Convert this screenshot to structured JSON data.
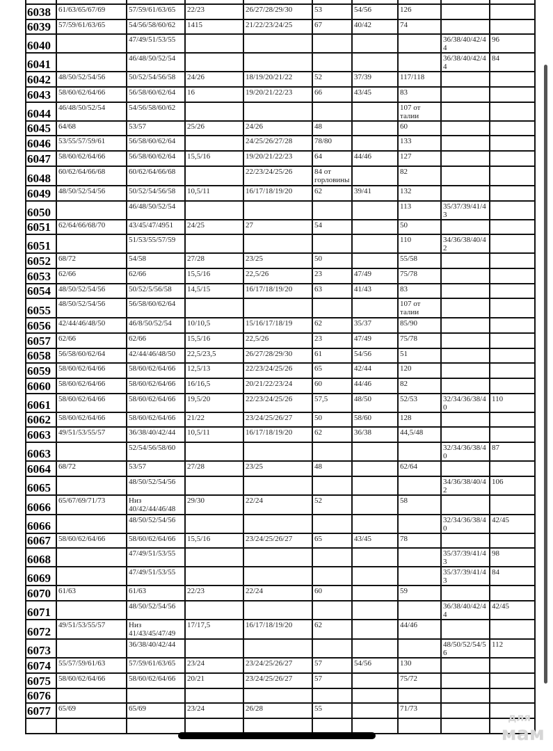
{
  "table": {
    "rows": [
      [
        "6038",
        "61/63/65/67/69",
        "57/59/61/63/65",
        "22/23",
        "26/27/28/29/30",
        "53",
        "54/56",
        "126",
        "",
        ""
      ],
      [
        "6039",
        "57/59/61/63/65",
        "54/56/58/60/62",
        "1415",
        "21/22/23/24/25",
        "67",
        "40/42",
        "74",
        "",
        ""
      ],
      [
        "6040",
        "",
        "47/49/51/53/55",
        "",
        "",
        "",
        "",
        "",
        "36/38/40/42/44",
        "96"
      ],
      [
        "6041",
        "",
        "46/48/50/52/54",
        "",
        "",
        "",
        "",
        "",
        "36/38/40/42/44",
        "84"
      ],
      [
        "6042",
        "48/50/52/54/56",
        "50/52/54/56/58",
        "24/26",
        "18/19/20/21/22",
        "52",
        "37/39",
        "117/118",
        "",
        ""
      ],
      [
        "6043",
        "58/60/62/64/66",
        "56/58/60/62/64",
        "16",
        "19/20/21/22/23",
        "66",
        "43/45",
        "83",
        "",
        ""
      ],
      [
        "6044",
        "46/48/50/52/54",
        "54/56/58/60/62",
        "",
        "",
        "",
        "",
        "107 от талии",
        "",
        ""
      ],
      [
        "6045",
        "64/68",
        "53/57",
        "25/26",
        "24/26",
        "48",
        "",
        "60",
        "",
        ""
      ],
      [
        "6046",
        "53/55/57/59/61",
        "56/58/60/62/64",
        "",
        "24/25/26/27/28",
        "78/80",
        "",
        "133",
        "",
        ""
      ],
      [
        "6047",
        "58/60/62/64/66",
        "56/58/60/62/64",
        "15,5/16",
        "19/20/21/22/23",
        "64",
        "44/46",
        "127",
        "",
        ""
      ],
      [
        "6048",
        "60/62/64/66/68",
        "60/62/64/66/68",
        "",
        "22/23/24/25/26",
        "84 от горловины",
        "",
        "82",
        "",
        ""
      ],
      [
        "6049",
        "48/50/52/54/56",
        "50/52/54/56/58",
        "10,5/11",
        "16/17/18/19/20",
        "62",
        "39/41",
        "132",
        "",
        ""
      ],
      [
        "6050",
        "",
        "46/48/50/52/54",
        "",
        "",
        "",
        "",
        "113",
        "35/37/39/41/43",
        ""
      ],
      [
        "6051",
        "62/64/66/68/70",
        "43/45/47/4951",
        "24/25",
        "27",
        "54",
        "",
        "50",
        "",
        ""
      ],
      [
        "6051",
        "",
        "51/53/55/57/59",
        "",
        "",
        "",
        "",
        "110",
        "34/36/38/40/42",
        ""
      ],
      [
        "6052",
        "68/72",
        "54/58",
        "27/28",
        "23/25",
        "50",
        "",
        "55/58",
        "",
        ""
      ],
      [
        "6053",
        "62/66",
        "62/66",
        "15,5/16",
        "22,5/26",
        "23",
        "47/49",
        "75/78",
        "",
        ""
      ],
      [
        "6054",
        "48/50/52/54/56",
        "50/52/5/56/58",
        "14,5/15",
        "16/17/18/19/20",
        "63",
        "41/43",
        "83",
        "",
        ""
      ],
      [
        "6055",
        "48/50/52/54/56",
        "56/58/60/62/64",
        "",
        "",
        "",
        "",
        "107 от талии",
        "",
        ""
      ],
      [
        "6056",
        "42/44/46/48/50",
        "46/8/50/52/54",
        "10/10,5",
        "15/16/17/18/19",
        "62",
        "35/37",
        "85/90",
        "",
        ""
      ],
      [
        "6057",
        "62/66",
        "62/66",
        "15,5/16",
        "22,5/26",
        "23",
        "47/49",
        "75/78",
        "",
        ""
      ],
      [
        "6058",
        "56/58/60/62/64",
        "42/44/46/48/50",
        "22,5/23,5",
        "26/27/28/29/30",
        "61",
        "54/56",
        "51",
        "",
        ""
      ],
      [
        "6059",
        "58/60/62/64/66",
        "58/60/62/64/66",
        "12,5/13",
        "22/23/24/25/26",
        "65",
        "42/44",
        "120",
        "",
        ""
      ],
      [
        "6060",
        "58/60/62/64/66",
        "58/60/62/64/66",
        "16/16,5",
        "20/21/22/23/24",
        "60",
        "44/46",
        "82",
        "",
        ""
      ],
      [
        "6061",
        "58/60/62/64/66",
        "58/60/62/64/66",
        "19,5/20",
        "22/23/24/25/26",
        "57,5",
        "48/50",
        "52/53",
        "32/34/36/38/40",
        "110"
      ],
      [
        "6062",
        "58/60/62/64/66",
        "58/60/62/64/66",
        "21/22",
        "23/24/25/26/27",
        "50",
        "58/60",
        "128",
        "",
        ""
      ],
      [
        "6063",
        "49/51/53/55/57",
        "36/38/40/42/44",
        "10,5/11",
        "16/17/18/19/20",
        "62",
        "36/38",
        "44,5/48",
        "",
        ""
      ],
      [
        "6063",
        "",
        "52/54/56/58/60",
        "",
        "",
        "",
        "",
        "",
        "32/34/36/38/40",
        "87"
      ],
      [
        "6064",
        "68/72",
        "53/57",
        "27/28",
        "23/25",
        "48",
        "",
        "62/64",
        "",
        ""
      ],
      [
        "6065",
        "",
        "48/50/52/54/56",
        "",
        "",
        "",
        "",
        "",
        "34/36/38/40/42",
        "106"
      ],
      [
        "6066",
        "65/67/69/71/73",
        "Низ 40/42/44/46/48",
        "29/30",
        "22/24",
        "52",
        "",
        "58",
        "",
        ""
      ],
      [
        "6066",
        "",
        "48/50/52/54/56",
        "",
        "",
        "",
        "",
        "",
        "32/34/36/38/40",
        "42/45"
      ],
      [
        "6067",
        "58/60/62/64/66",
        "58/60/62/64/66",
        "15,5/16",
        "23/24/25/26/27",
        "65",
        "43/45",
        "78",
        "",
        ""
      ],
      [
        "6068",
        "",
        "47/49/51/53/55",
        "",
        "",
        "",
        "",
        "",
        "35/37/39/41/43",
        "98"
      ],
      [
        "6069",
        "",
        "47/49/51/53/55",
        "",
        "",
        "",
        "",
        "",
        "35/37/39/41/43",
        "84"
      ],
      [
        "6070",
        "61/63",
        "61/63",
        "22/23",
        "22/24",
        "60",
        "",
        "59",
        "",
        ""
      ],
      [
        "6071",
        "",
        "48/50/52/54/56",
        "",
        "",
        "",
        "",
        "",
        "36/38/40/42/44",
        "42/45"
      ],
      [
        "6072",
        "49/51/53/55/57",
        "Низ 41/43/45/47/49",
        "17/17,5",
        "16/17/18/19/20",
        "62",
        "",
        "44/46",
        "",
        ""
      ],
      [
        "6073",
        "",
        "36/38/40/42/44",
        "",
        "",
        "",
        "",
        "",
        "48/50/52/54/56",
        "112"
      ],
      [
        "6074",
        "55/57/59/61/63",
        "57/59/61/63/65",
        "23/24",
        "23/24/25/26/27",
        "57",
        "54/56",
        "130",
        "",
        ""
      ],
      [
        "6075",
        "58/60/62/64/66",
        "58/60/62/64/66",
        "20/21",
        "23/24/25/26/27",
        "57",
        "",
        "75/72",
        "",
        ""
      ],
      [
        "6076",
        "",
        "",
        "",
        "",
        "",
        "",
        "",
        "",
        ""
      ],
      [
        "6077",
        "65/69",
        "65/69",
        "23/24",
        "26/28",
        "55",
        "",
        "71/73",
        "",
        ""
      ],
      [
        "",
        "",
        "",
        "",
        "",
        "",
        "",
        "",
        "",
        ""
      ]
    ],
    "tall_rows": [
      "6048",
      "6055",
      "6066",
      "6072"
    ]
  },
  "watermark": {
    "line1": "для",
    "line2": "мам"
  }
}
